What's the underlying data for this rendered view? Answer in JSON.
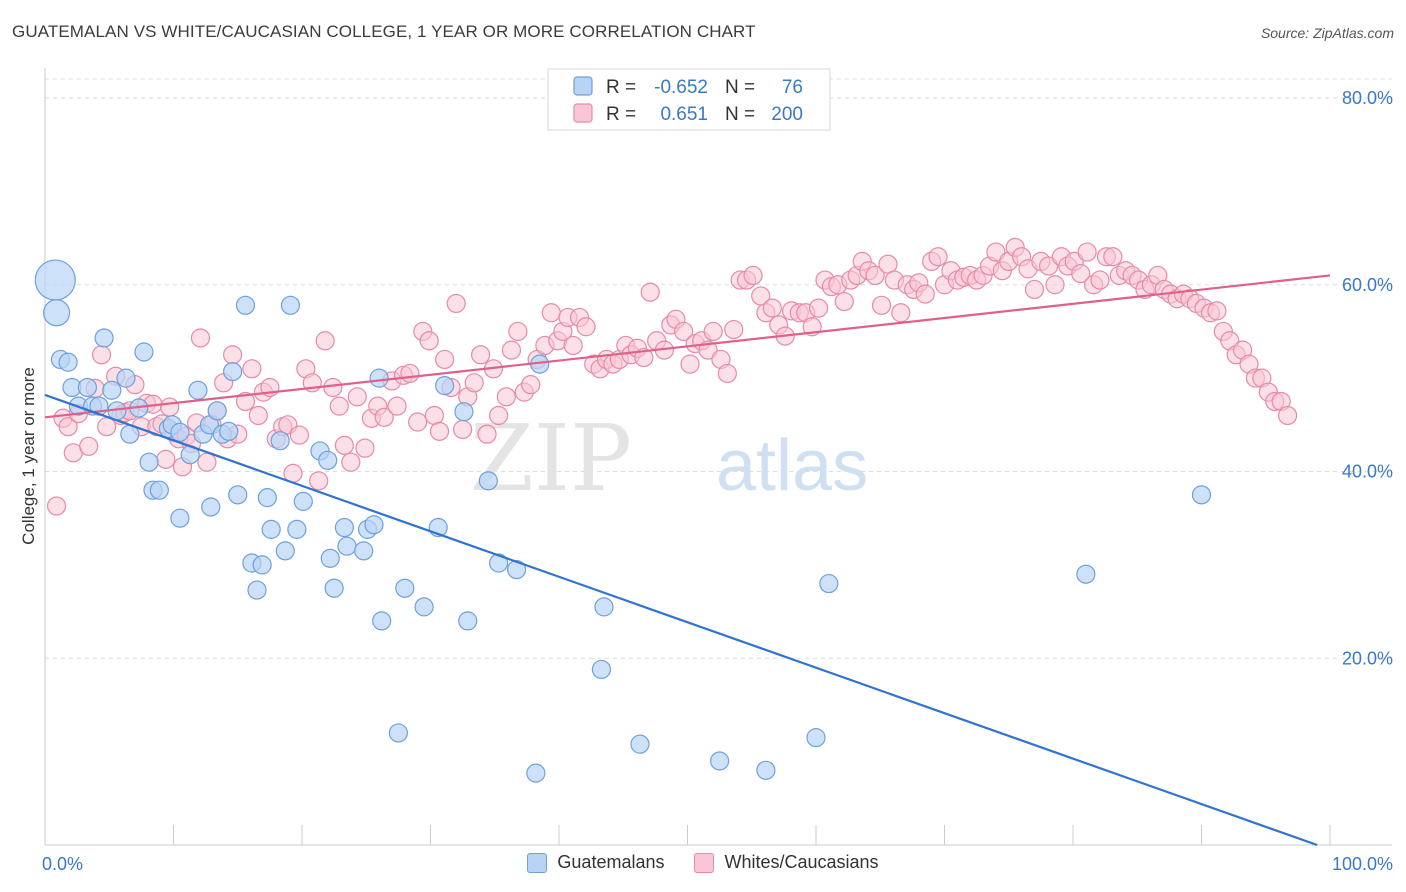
{
  "title": "GUATEMALAN VS WHITE/CAUCASIAN COLLEGE, 1 YEAR OR MORE CORRELATION CHART",
  "source": "Source: ZipAtlas.com",
  "watermark": {
    "zip": "ZIP",
    "atlas": "atlas"
  },
  "legend_box": {
    "rows": [
      {
        "r_label": "R =",
        "r_value": "-0.652",
        "n_label": "N =",
        "n_value": "76",
        "fill": "#b8d4f5",
        "stroke": "#6fa0dd"
      },
      {
        "r_label": "R =",
        "r_value": "0.651",
        "n_label": "N =",
        "n_value": "200",
        "fill": "#f8c6d6",
        "stroke": "#e889a8"
      }
    ]
  },
  "colors": {
    "blue_fill": "#b8d4f5",
    "blue_stroke": "#6fa0dd",
    "blue_line": "#2f74d0",
    "pink_fill": "#f8c6d6",
    "pink_stroke": "#e889a8",
    "pink_line": "#e0608a",
    "axis_label": "#3a78c8",
    "grid": "#dddddd"
  },
  "chart_data": {
    "type": "scatter",
    "xlabel": "",
    "ylabel": "College, 1 year or more",
    "xlim": [
      0,
      100
    ],
    "ylim": [
      0,
      80
    ],
    "x_tick_labels": [
      "0.0%",
      "100.0%"
    ],
    "y_tick_labels": [
      "20.0%",
      "40.0%",
      "60.0%",
      "80.0%"
    ],
    "y_ticks": [
      20,
      40,
      60,
      80
    ],
    "legend_position": "top-center",
    "series": [
      {
        "name": "Guatemalans",
        "color": "#6fa0dd",
        "trend": {
          "x": [
            0,
            99
          ],
          "y": [
            48.2,
            0
          ]
        },
        "points": [
          [
            0.8,
            60.5,
            20
          ],
          [
            0.9,
            57.0,
            13
          ],
          [
            1.2,
            52.0,
            9
          ],
          [
            1.8,
            51.7,
            9
          ],
          [
            2.1,
            49.0,
            9
          ],
          [
            2.6,
            47.0,
            9
          ],
          [
            3.3,
            49.0,
            9
          ],
          [
            3.7,
            47.0,
            9
          ],
          [
            4.2,
            47.0,
            9
          ],
          [
            4.6,
            54.3,
            9
          ],
          [
            5.2,
            48.7,
            9
          ],
          [
            5.6,
            46.5,
            9
          ],
          [
            6.3,
            50.0,
            9
          ],
          [
            6.6,
            44.0,
            9
          ],
          [
            7.3,
            46.8,
            9
          ],
          [
            7.7,
            52.8,
            9
          ],
          [
            8.1,
            41.0,
            9
          ],
          [
            8.4,
            38.0,
            9
          ],
          [
            8.9,
            38.0,
            9
          ],
          [
            9.6,
            44.6,
            9
          ],
          [
            9.9,
            45.0,
            9
          ],
          [
            10.5,
            44.2,
            9
          ],
          [
            10.5,
            35.0,
            9
          ],
          [
            11.3,
            41.8,
            9
          ],
          [
            11.9,
            48.7,
            9
          ],
          [
            12.3,
            44.0,
            9
          ],
          [
            12.8,
            45.0,
            9
          ],
          [
            12.9,
            36.2,
            9
          ],
          [
            13.4,
            46.5,
            9
          ],
          [
            13.8,
            44.0,
            9
          ],
          [
            14.3,
            44.3,
            9
          ],
          [
            14.6,
            50.7,
            9
          ],
          [
            15.0,
            37.5,
            9
          ],
          [
            15.6,
            57.8,
            9
          ],
          [
            16.1,
            30.2,
            9
          ],
          [
            16.5,
            27.3,
            9
          ],
          [
            16.9,
            30.0,
            9
          ],
          [
            17.3,
            37.2,
            9
          ],
          [
            17.6,
            33.8,
            9
          ],
          [
            18.3,
            43.3,
            9
          ],
          [
            18.7,
            31.5,
            9
          ],
          [
            19.1,
            57.8,
            9
          ],
          [
            19.6,
            33.8,
            9
          ],
          [
            20.1,
            36.8,
            9
          ],
          [
            21.4,
            42.2,
            9
          ],
          [
            22.0,
            41.2,
            9
          ],
          [
            22.2,
            30.7,
            9
          ],
          [
            22.5,
            27.5,
            9
          ],
          [
            23.3,
            34.0,
            9
          ],
          [
            23.5,
            32.0,
            9
          ],
          [
            24.8,
            31.5,
            9
          ],
          [
            25.1,
            33.8,
            9
          ],
          [
            25.6,
            34.3,
            9
          ],
          [
            26.0,
            50.0,
            9
          ],
          [
            26.2,
            24.0,
            9
          ],
          [
            27.5,
            12.0,
            9
          ],
          [
            28.0,
            27.5,
            9
          ],
          [
            29.5,
            25.5,
            9
          ],
          [
            30.6,
            34.0,
            9
          ],
          [
            31.1,
            49.2,
            9
          ],
          [
            32.9,
            24.0,
            9
          ],
          [
            32.6,
            46.4,
            9
          ],
          [
            34.5,
            39.0,
            9
          ],
          [
            35.3,
            30.2,
            9
          ],
          [
            36.7,
            29.5,
            9
          ],
          [
            38.2,
            7.7,
            9
          ],
          [
            38.5,
            51.5,
            9
          ],
          [
            43.5,
            25.5,
            9
          ],
          [
            43.3,
            18.8,
            9
          ],
          [
            46.3,
            10.8,
            9
          ],
          [
            52.5,
            9.0,
            9
          ],
          [
            56.1,
            8.0,
            9
          ],
          [
            60.0,
            11.5,
            9
          ],
          [
            61.0,
            28.0,
            9
          ],
          [
            90.0,
            37.5,
            9
          ],
          [
            81.0,
            29.0,
            9
          ]
        ]
      },
      {
        "name": "Whites/Caucasians",
        "color": "#e889a8",
        "trend": {
          "x": [
            0,
            100
          ],
          "y": [
            45.8,
            61.0
          ]
        },
        "points": [
          [
            0.9,
            36.3
          ],
          [
            1.4,
            45.7
          ],
          [
            1.8,
            44.8
          ],
          [
            2.2,
            42.0
          ],
          [
            2.6,
            46.2
          ],
          [
            3.4,
            42.7
          ],
          [
            3.9,
            48.9
          ],
          [
            4.4,
            52.5
          ],
          [
            4.8,
            44.8
          ],
          [
            5.5,
            50.2
          ],
          [
            5.9,
            46.0
          ],
          [
            6.2,
            46.3
          ],
          [
            6.6,
            46.5
          ],
          [
            7.0,
            49.3
          ],
          [
            7.5,
            44.8
          ],
          [
            7.9,
            47.3
          ],
          [
            8.4,
            47.2
          ],
          [
            8.7,
            44.8
          ],
          [
            9.1,
            45.1
          ],
          [
            9.4,
            41.3
          ],
          [
            9.7,
            46.9
          ],
          [
            10.0,
            44.2
          ],
          [
            10.4,
            43.5
          ],
          [
            10.7,
            40.5
          ],
          [
            11.0,
            43.8
          ],
          [
            11.4,
            43.0
          ],
          [
            11.8,
            45.2
          ],
          [
            12.1,
            54.3
          ],
          [
            12.6,
            41.0
          ],
          [
            13.0,
            45.0
          ],
          [
            13.4,
            46.5
          ],
          [
            13.9,
            49.5
          ],
          [
            14.2,
            43.5
          ],
          [
            14.6,
            52.5
          ],
          [
            15.0,
            44.0
          ],
          [
            15.6,
            47.5
          ],
          [
            16.1,
            51.0
          ],
          [
            16.6,
            46.0
          ],
          [
            17.0,
            48.5
          ],
          [
            17.5,
            49.0
          ],
          [
            18.0,
            43.5
          ],
          [
            18.5,
            44.8
          ],
          [
            18.9,
            45.0
          ],
          [
            19.3,
            39.8
          ],
          [
            19.8,
            43.9
          ],
          [
            20.3,
            51.0
          ],
          [
            20.8,
            49.5
          ],
          [
            21.3,
            39.0
          ],
          [
            21.8,
            54.0
          ],
          [
            22.4,
            49.0
          ],
          [
            22.9,
            47.0
          ],
          [
            23.3,
            42.8
          ],
          [
            23.8,
            41.0
          ],
          [
            24.3,
            48.0
          ],
          [
            24.9,
            42.5
          ],
          [
            25.4,
            45.7
          ],
          [
            25.9,
            47.0
          ],
          [
            26.4,
            45.8
          ],
          [
            27.0,
            49.7
          ],
          [
            27.4,
            47.0
          ],
          [
            27.9,
            50.3
          ],
          [
            28.4,
            50.5
          ],
          [
            29.0,
            45.3
          ],
          [
            29.4,
            55.0
          ],
          [
            29.9,
            54.0
          ],
          [
            30.3,
            46.0
          ],
          [
            30.7,
            44.3
          ],
          [
            31.1,
            52.0
          ],
          [
            31.6,
            49.0
          ],
          [
            32.0,
            58.0
          ],
          [
            32.5,
            44.5
          ],
          [
            32.9,
            48.0
          ],
          [
            33.4,
            49.5
          ],
          [
            33.9,
            52.5
          ],
          [
            34.4,
            44.0
          ],
          [
            34.9,
            51.0
          ],
          [
            35.3,
            46.0
          ],
          [
            35.9,
            48.0
          ],
          [
            36.3,
            53.0
          ],
          [
            36.8,
            55.0
          ],
          [
            37.3,
            48.5
          ],
          [
            37.8,
            49.3
          ],
          [
            38.3,
            52.0
          ],
          [
            38.9,
            53.5
          ],
          [
            39.4,
            57.0
          ],
          [
            39.9,
            54.0
          ],
          [
            40.3,
            55.0
          ],
          [
            40.7,
            56.5
          ],
          [
            41.1,
            53.5
          ],
          [
            41.6,
            56.5
          ],
          [
            42.1,
            55.5
          ],
          [
            42.7,
            51.5
          ],
          [
            43.2,
            51.0
          ],
          [
            43.7,
            52.0
          ],
          [
            44.2,
            51.5
          ],
          [
            44.7,
            52.0
          ],
          [
            45.2,
            53.5
          ],
          [
            45.6,
            52.5
          ],
          [
            46.1,
            53.2
          ],
          [
            46.6,
            52.2
          ],
          [
            47.1,
            59.2
          ],
          [
            47.6,
            54.0
          ],
          [
            48.2,
            53.0
          ],
          [
            48.7,
            55.7
          ],
          [
            49.1,
            56.3
          ],
          [
            49.7,
            55.0
          ],
          [
            50.2,
            51.5
          ],
          [
            50.6,
            53.7
          ],
          [
            51.1,
            54.0
          ],
          [
            51.6,
            53.0
          ],
          [
            52.0,
            55.0
          ],
          [
            52.6,
            52.0
          ],
          [
            53.1,
            50.5
          ],
          [
            53.6,
            55.2
          ],
          [
            54.1,
            60.5
          ],
          [
            54.6,
            60.5
          ],
          [
            55.1,
            61.0
          ],
          [
            55.7,
            58.8
          ],
          [
            56.1,
            57.0
          ],
          [
            56.6,
            57.5
          ],
          [
            57.1,
            55.7
          ],
          [
            57.6,
            54.5
          ],
          [
            58.1,
            57.2
          ],
          [
            58.7,
            57.0
          ],
          [
            59.2,
            57.0
          ],
          [
            59.7,
            55.5
          ],
          [
            60.2,
            57.5
          ],
          [
            60.7,
            60.5
          ],
          [
            61.2,
            59.8
          ],
          [
            61.7,
            60.0
          ],
          [
            62.2,
            58.2
          ],
          [
            62.7,
            60.5
          ],
          [
            63.2,
            61.0
          ],
          [
            63.6,
            62.5
          ],
          [
            64.1,
            61.5
          ],
          [
            64.6,
            61.0
          ],
          [
            65.1,
            57.8
          ],
          [
            65.6,
            62.2
          ],
          [
            66.1,
            60.5
          ],
          [
            66.6,
            57.0
          ],
          [
            67.1,
            60.0
          ],
          [
            67.6,
            59.5
          ],
          [
            68.0,
            60.2
          ],
          [
            68.5,
            59.0
          ],
          [
            69.0,
            62.5
          ],
          [
            69.5,
            63.0
          ],
          [
            70.0,
            60.0
          ],
          [
            70.5,
            61.5
          ],
          [
            71.0,
            60.5
          ],
          [
            71.5,
            60.8
          ],
          [
            72.0,
            61.0
          ],
          [
            72.5,
            60.5
          ],
          [
            73.0,
            61.0
          ],
          [
            73.5,
            62.0
          ],
          [
            74.0,
            63.5
          ],
          [
            74.5,
            61.5
          ],
          [
            75.0,
            62.5
          ],
          [
            75.5,
            64.0
          ],
          [
            76.0,
            63.0
          ],
          [
            76.5,
            61.7
          ],
          [
            77.0,
            59.5
          ],
          [
            77.5,
            62.5
          ],
          [
            78.1,
            62.0
          ],
          [
            78.6,
            60.0
          ],
          [
            79.1,
            63.0
          ],
          [
            79.6,
            62.0
          ],
          [
            80.1,
            62.5
          ],
          [
            80.6,
            61.2
          ],
          [
            81.1,
            63.5
          ],
          [
            81.6,
            60.0
          ],
          [
            82.1,
            60.5
          ],
          [
            82.6,
            63.0
          ],
          [
            83.1,
            63.0
          ],
          [
            83.6,
            61.0
          ],
          [
            84.1,
            61.5
          ],
          [
            84.6,
            61.0
          ],
          [
            85.1,
            60.5
          ],
          [
            85.6,
            59.5
          ],
          [
            86.1,
            60.0
          ],
          [
            86.6,
            61.0
          ],
          [
            87.1,
            59.5
          ],
          [
            87.6,
            59.0
          ],
          [
            88.1,
            58.5
          ],
          [
            88.6,
            59.0
          ],
          [
            89.1,
            58.5
          ],
          [
            89.6,
            58.0
          ],
          [
            90.2,
            57.5
          ],
          [
            90.7,
            57.0
          ],
          [
            91.2,
            57.2
          ],
          [
            91.7,
            55.0
          ],
          [
            92.2,
            54.0
          ],
          [
            92.7,
            52.5
          ],
          [
            93.2,
            53.0
          ],
          [
            93.7,
            51.5
          ],
          [
            94.2,
            50.0
          ],
          [
            94.7,
            50.0
          ],
          [
            95.2,
            48.5
          ],
          [
            95.7,
            47.5
          ],
          [
            96.2,
            47.5
          ],
          [
            96.7,
            46.0
          ]
        ]
      }
    ]
  }
}
